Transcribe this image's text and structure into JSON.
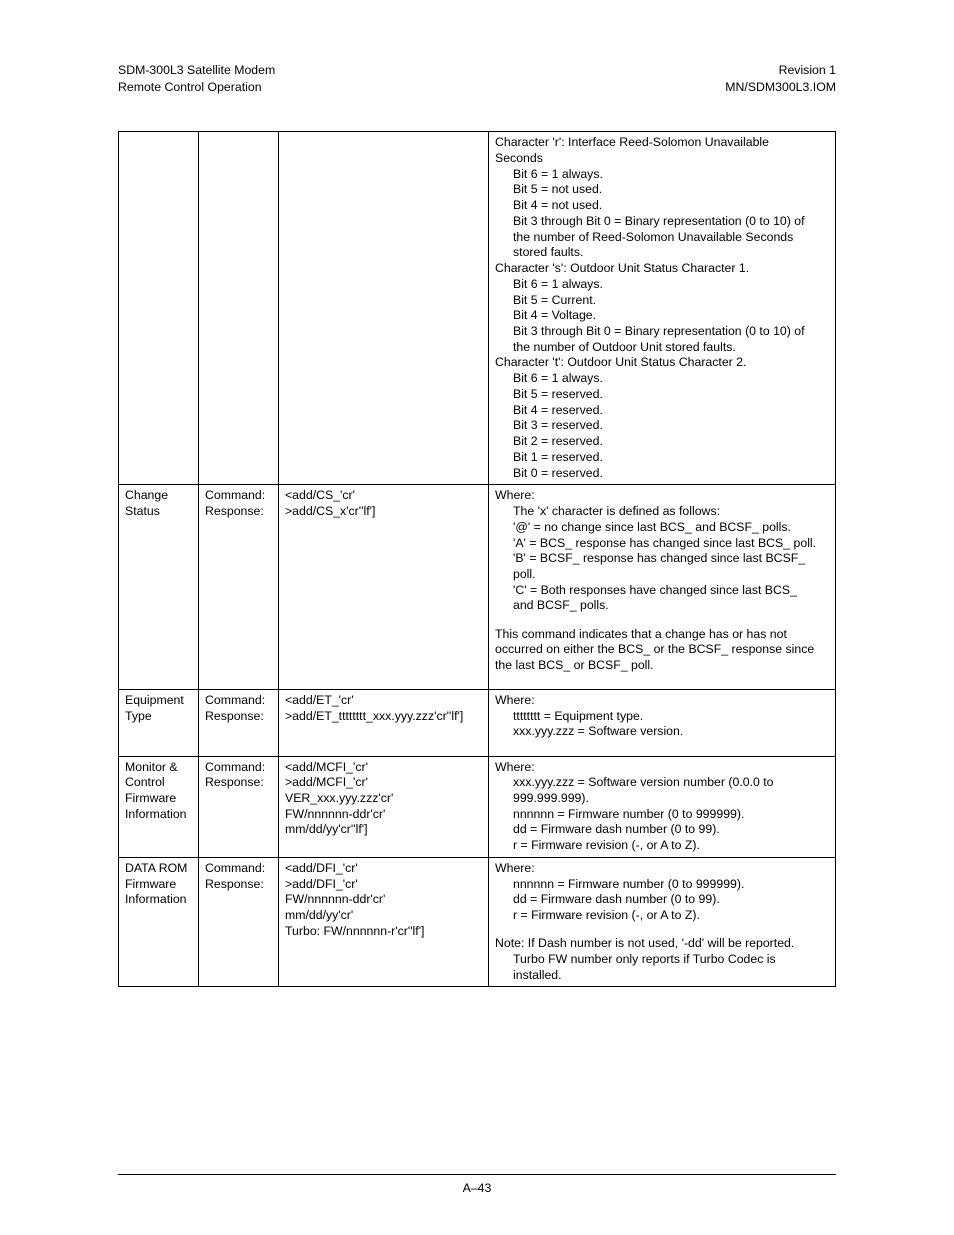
{
  "header": {
    "left_line1": "SDM-300L3 Satellite Modem",
    "left_line2": "Remote Control Operation",
    "right_line1": "Revision 1",
    "right_line2": "MN/SDM300L3.IOM"
  },
  "rows": [
    {
      "name": "",
      "cmd_label": "",
      "resp_label": "",
      "syntax": "",
      "desc_lines": [
        {
          "t": "Character 'r': Interface Reed-Solomon Unavailable",
          "cls": "para"
        },
        {
          "t": "Seconds",
          "cls": "para"
        },
        {
          "t": "Bit 6 = 1 always.",
          "cls": "indent"
        },
        {
          "t": "Bit 5 = not used.",
          "cls": "indent"
        },
        {
          "t": "Bit 4 = not used.",
          "cls": "indent"
        },
        {
          "t": "Bit 3 through Bit 0 = Binary representation (0 to 10) of",
          "cls": "indent"
        },
        {
          "t": "the number of Reed-Solomon Unavailable Seconds",
          "cls": "indent"
        },
        {
          "t": "stored faults.",
          "cls": "indent"
        },
        {
          "t": "Character 's': Outdoor Unit Status Character 1.",
          "cls": "para"
        },
        {
          "t": "Bit 6 = 1 always.",
          "cls": "indent"
        },
        {
          "t": "Bit 5 = Current.",
          "cls": "indent"
        },
        {
          "t": "Bit 4 = Voltage.",
          "cls": "indent"
        },
        {
          "t": "Bit 3 through Bit 0 = Binary representation (0 to 10) of",
          "cls": "indent"
        },
        {
          "t": "the number of Outdoor Unit stored faults.",
          "cls": "indent"
        },
        {
          "t": "Character 't': Outdoor Unit Status Character 2.",
          "cls": "para"
        },
        {
          "t": "Bit 6 = 1 always.",
          "cls": "indent"
        },
        {
          "t": "Bit 5 = reserved.",
          "cls": "indent"
        },
        {
          "t": "Bit 4 = reserved.",
          "cls": "indent"
        },
        {
          "t": "Bit 3 = reserved.",
          "cls": "indent"
        },
        {
          "t": "Bit 2 = reserved.",
          "cls": "indent"
        },
        {
          "t": "Bit 1 = reserved.",
          "cls": "indent"
        },
        {
          "t": "Bit 0 = reserved.",
          "cls": "indent"
        }
      ]
    },
    {
      "name": "Change Status",
      "cmd_label": "Command:",
      "resp_label": "Response:",
      "syntax_lines": [
        "<add/CS_'cr'",
        ">add/CS_x'cr''lf']"
      ],
      "desc_lines": [
        {
          "t": "Where:",
          "cls": "para"
        },
        {
          "t": "The 'x' character is defined as follows:",
          "cls": "indent"
        },
        {
          "t": "'@' = no change since last BCS_ and BCSF_ polls.",
          "cls": "indent"
        },
        {
          "t": "'A' = BCS_ response has changed since last BCS_ poll.",
          "cls": "indent"
        },
        {
          "t": "'B' = BCSF_ response has changed since last BCSF_",
          "cls": "indent"
        },
        {
          "t": "poll.",
          "cls": "indent"
        },
        {
          "t": "'C' = Both responses have changed since last BCS_",
          "cls": "indent"
        },
        {
          "t": "and BCSF_ polls.",
          "cls": "indent"
        },
        {
          "t": "",
          "cls": "blankline"
        },
        {
          "t": "This command indicates that a change has or has not",
          "cls": "para"
        },
        {
          "t": "occurred on either the BCS_ or the BCSF_ response since",
          "cls": "para"
        },
        {
          "t": "the last BCS_ or BCSF_ poll.",
          "cls": "para"
        },
        {
          "t": "",
          "cls": "blankline"
        }
      ]
    },
    {
      "name": "Equipment Type",
      "cmd_label": "Command:",
      "resp_label": "Response:",
      "syntax_lines": [
        "<add/ET_'cr'",
        ">add/ET_tttttttt_xxx.yyy.zzz'cr''lf']"
      ],
      "desc_lines": [
        {
          "t": "Where:",
          "cls": "para"
        },
        {
          "t": "tttttttt = Equipment type.",
          "cls": "indent"
        },
        {
          "t": "xxx.yyy.zzz = Software version.",
          "cls": "indent"
        },
        {
          "t": "",
          "cls": "blankline"
        }
      ]
    },
    {
      "name": "Monitor & Control Firmware Information",
      "cmd_label": "Command:",
      "resp_label": "Response:",
      "syntax_lines": [
        "<add/MCFI_'cr'",
        ">add/MCFI_'cr'",
        "VER_xxx.yyy.zzz'cr'",
        "FW/nnnnnn-ddr'cr'",
        "mm/dd/yy'cr''lf']"
      ],
      "desc_lines": [
        {
          "t": "Where:",
          "cls": "para"
        },
        {
          "t": "xxx.yyy.zzz = Software version number (0.0.0 to",
          "cls": "indent"
        },
        {
          "t": "999.999.999).",
          "cls": "indent"
        },
        {
          "t": "nnnnnn = Firmware number (0 to 999999).",
          "cls": "indent"
        },
        {
          "t": "dd = Firmware dash number (0 to 99).",
          "cls": "indent"
        },
        {
          "t": "r = Firmware revision (-, or A to Z).",
          "cls": "indent"
        }
      ]
    },
    {
      "name": "DATA ROM Firmware Information",
      "cmd_label": "Command:",
      "resp_label": "Response:",
      "syntax_lines": [
        "<add/DFI_'cr'",
        ">add/DFI_'cr'",
        "FW/nnnnnn-ddr'cr'",
        "mm/dd/yy'cr'",
        "Turbo: FW/nnnnnn-r'cr''lf']"
      ],
      "desc_lines": [
        {
          "t": "Where:",
          "cls": "para"
        },
        {
          "t": "nnnnnn = Firmware number (0 to 999999).",
          "cls": "indent"
        },
        {
          "t": "dd = Firmware dash number (0 to 99).",
          "cls": "indent"
        },
        {
          "t": "r = Firmware revision (-, or A to Z).",
          "cls": "indent"
        },
        {
          "t": "",
          "cls": "blankline"
        },
        {
          "t": "Note: If Dash number is not used, '-dd' will be reported.",
          "cls": "para"
        },
        {
          "t": "Turbo FW number only reports if Turbo Codec is",
          "cls": "indent2"
        },
        {
          "t": "installed.",
          "cls": "indent2"
        }
      ]
    }
  ],
  "footer": "A–43"
}
